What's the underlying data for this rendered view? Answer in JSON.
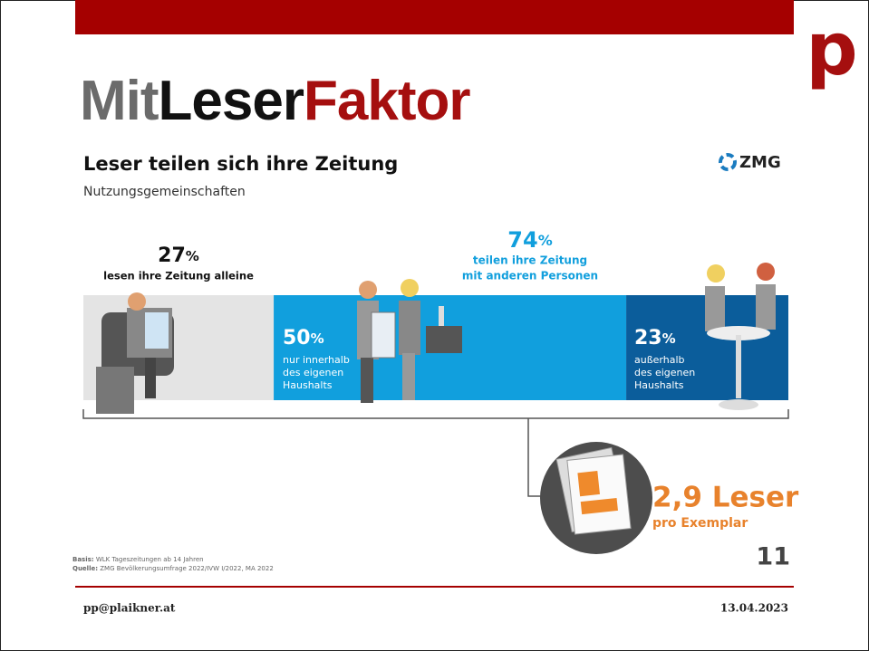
{
  "header": {
    "title": [
      {
        "text": "Mit",
        "color": "#6b6b6b"
      },
      {
        "text": "Leser",
        "color": "#111111"
      },
      {
        "text": "Faktor",
        "color": "#a50f0f"
      }
    ],
    "logo": "p"
  },
  "heading": "Leser teilen sich ihre Zeitung",
  "subheading": "Nutzungsgemeinschaften",
  "brand": "ZMG",
  "total": {
    "value": 74,
    "unit": "%",
    "caption": [
      "teilen ihre Zeitung",
      "mit anderen Personen"
    ]
  },
  "segments": [
    {
      "value": 27,
      "unit": "%",
      "color": "#e4e4e4",
      "caption": [
        "lesen ihre Zeitung alleine"
      ]
    },
    {
      "value": 50,
      "unit": "%",
      "color": "#119fdd",
      "caption": [
        "nur innerhalb",
        "des eigenen",
        "Haushalts"
      ]
    },
    {
      "value": 23,
      "unit": "%",
      "color": "#0b5d9b",
      "caption": [
        "außerhalb",
        "des eigenen",
        "Haushalts"
      ]
    }
  ],
  "result": {
    "value": "2,9 Leser",
    "caption": "pro Exemplar"
  },
  "notes": [
    {
      "key": "Basis:",
      "text": "WLK Tageszeitungen ab 14 Jahren"
    },
    {
      "key": "Quelle:",
      "text": "ZMG Bevölkerungsumfrage 2022/IVW I/2022, MA 2022"
    }
  ],
  "page_number": "11",
  "footer": {
    "email": "pp@plaikner.at",
    "date": "13.04.2023"
  }
}
